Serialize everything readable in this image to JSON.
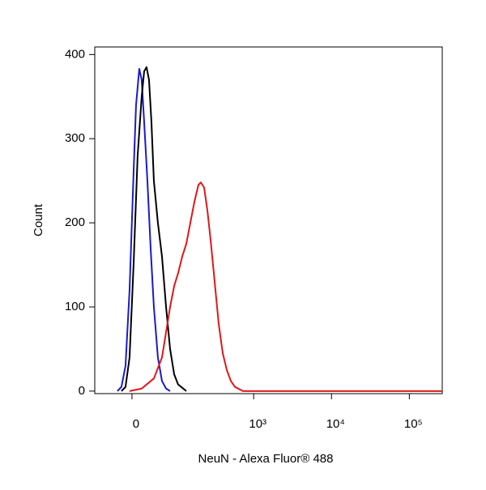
{
  "chart_data": {
    "type": "line",
    "xlabel": "NeuN - Alexa Fluor® 488",
    "ylabel": "Count",
    "xscale": "biexponential",
    "xlim": [
      -73,
      265000
    ],
    "ylim": [
      -3,
      409
    ],
    "xticks": [
      0,
      {
        "value": 1000,
        "label": "10³"
      },
      {
        "value": 10000,
        "label": "10⁴"
      },
      {
        "value": 100000,
        "label": "10⁵"
      }
    ],
    "yticks": [
      0,
      100,
      200,
      300,
      400
    ],
    "series": [
      {
        "name": "Blue",
        "color": "#1a1ad0",
        "x": [
          -24.3,
          -17.3,
          -10.5,
          -3.9,
          2.6,
          6.6,
          11.9,
          15.9,
          20.1,
          25.8,
          31.7,
          37.9,
          46.1,
          55.1,
          64.9,
          75.5
        ],
        "values": [
          0,
          5,
          30,
          120,
          260,
          340,
          383,
          370,
          320,
          250,
          170,
          100,
          40,
          12,
          3,
          0
        ]
      },
      {
        "name": "Black",
        "color": "#000000",
        "x": [
          -17.3,
          -10.5,
          -3.9,
          2.6,
          9.2,
          15.9,
          20.1,
          24.3,
          28.7,
          33.2,
          37.9,
          46.1,
          55.1,
          64.9,
          75.5,
          87.3,
          99.8,
          130.7
        ],
        "values": [
          0,
          5,
          40,
          150,
          280,
          350,
          380,
          385,
          370,
          320,
          250,
          200,
          160,
          100,
          50,
          20,
          8,
          0
        ]
      },
      {
        "name": "Red",
        "color": "#e01818",
        "x": [
          -3.9,
          15.9,
          37.9,
          55.1,
          64.9,
          75.5,
          87.3,
          99.8,
          114.6,
          130.7,
          148.7,
          168.8,
          191.1,
          206,
          227.5,
          251,
          276.7,
          312.8,
          353,
          398.6,
          450,
          508,
          573,
          728,
          265000
        ],
        "values": [
          0,
          3,
          15,
          40,
          70,
          100,
          125,
          140,
          160,
          175,
          200,
          225,
          245,
          248,
          242,
          215,
          180,
          130,
          80,
          45,
          25,
          12,
          5,
          0,
          0
        ]
      }
    ]
  }
}
